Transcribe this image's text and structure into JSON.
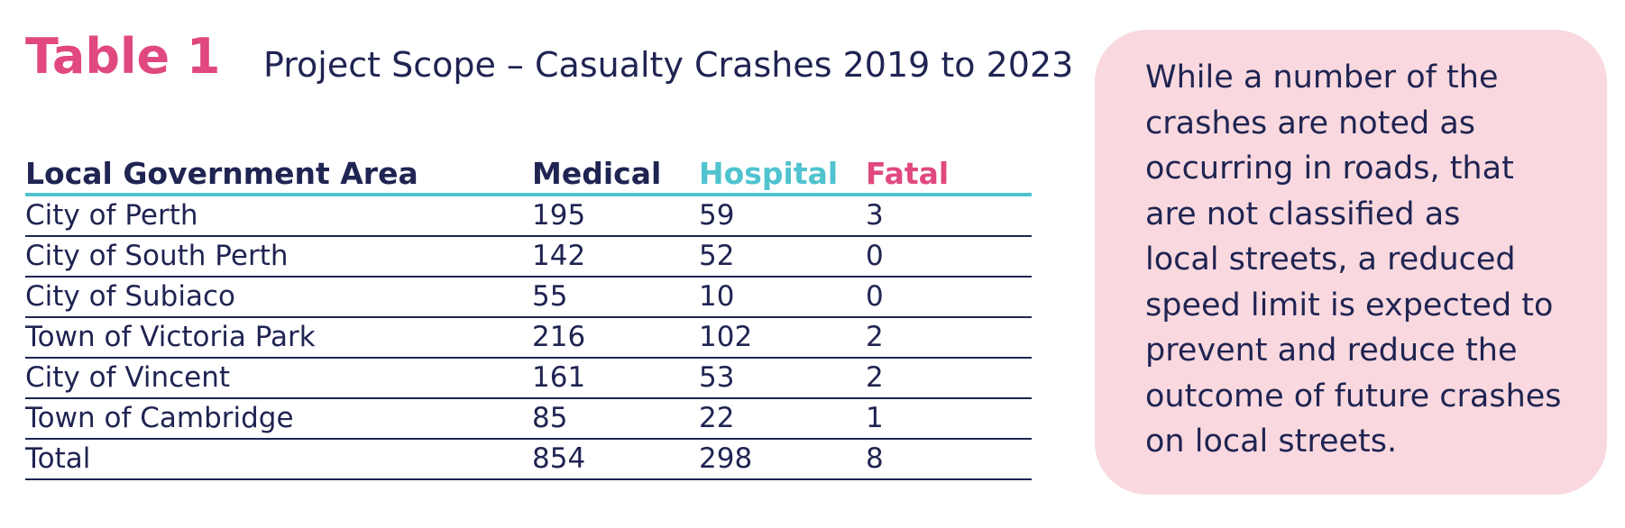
{
  "header": {
    "table_label": "Table 1",
    "title": "Project Scope – Casualty Crashes 2019 to 2023"
  },
  "table": {
    "columns": [
      "Local Government Area",
      "Medical",
      "Hospital",
      "Fatal"
    ],
    "column_colors": [
      "#1f2452",
      "#1f2452",
      "#4fc3cf",
      "#e0487f"
    ],
    "rows": [
      [
        "City of Perth",
        "195",
        "59",
        "3"
      ],
      [
        "City of South Perth",
        "142",
        "52",
        "0"
      ],
      [
        "City of Subiaco",
        "55",
        "10",
        "0"
      ],
      [
        "Town of Victoria Park",
        "216",
        "102",
        "2"
      ],
      [
        "City of Vincent",
        "161",
        "53",
        "2"
      ],
      [
        "Town of Cambridge",
        "85",
        "22",
        "1"
      ],
      [
        "Total",
        "854",
        "298",
        "8"
      ]
    ]
  },
  "callout": {
    "lines": [
      "While a number of the",
      "crashes are noted as",
      "occurring in roads, that",
      "are not classified as",
      "local streets, a reduced",
      "speed limit is expected to",
      "prevent and reduce the",
      "outcome of future crashes",
      "on local streets."
    ]
  },
  "colors": {
    "accent_pink": "#e0487f",
    "accent_teal": "#4fc3cf",
    "text_navy": "#1f2452",
    "callout_bg": "#f9d9df"
  }
}
